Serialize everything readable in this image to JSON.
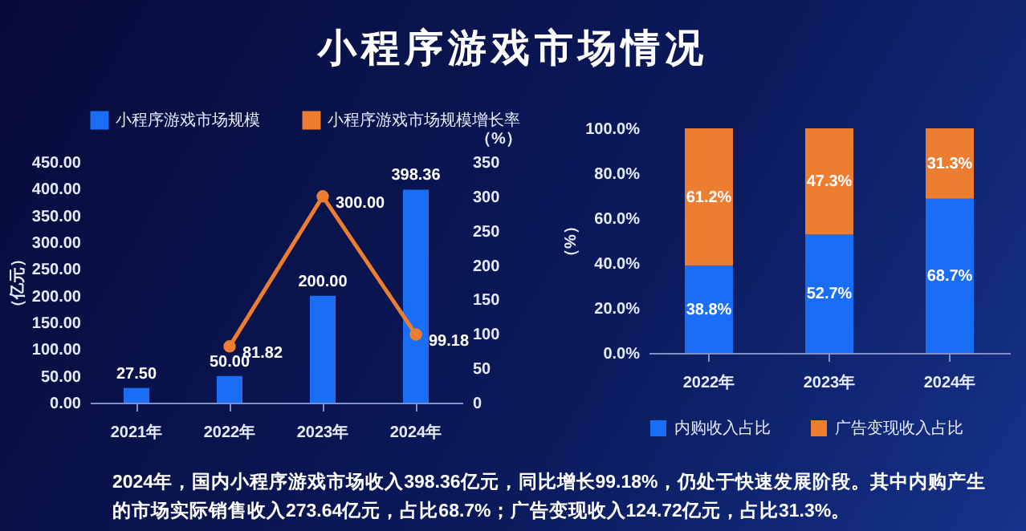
{
  "chart_data": [
    {
      "type": "bar",
      "title": "小程序游戏市场情况",
      "ylabel": "（亿元）",
      "y2label": "（%）",
      "categories": [
        "2021年",
        "2022年",
        "2023年",
        "2024年"
      ],
      "series": [
        {
          "name": "小程序游戏市场规模",
          "type": "bar",
          "color": "#1a6ef5",
          "values": [
            27.5,
            50,
            200,
            398.36
          ],
          "value_labels": [
            "27.50",
            "50.00",
            "200.00",
            "398.36"
          ]
        },
        {
          "name": "小程序游戏市场规模增长率",
          "type": "line",
          "axis": "y2",
          "color": "#ed7d31",
          "values": [
            null,
            81.82,
            300,
            99.18
          ],
          "value_labels": [
            null,
            "81.82",
            "300.00",
            "99.18"
          ]
        }
      ],
      "ylim": [
        0,
        450
      ],
      "yticks": [
        {
          "value": 0,
          "label": "0.00"
        },
        {
          "value": 50,
          "label": "50.00"
        },
        {
          "value": 100,
          "label": "100.00"
        },
        {
          "value": 150,
          "label": "150.00"
        },
        {
          "value": 200,
          "label": "200.00"
        },
        {
          "value": 250,
          "label": "250.00"
        },
        {
          "value": 300,
          "label": "300.00"
        },
        {
          "value": 350,
          "label": "350.00"
        },
        {
          "value": 400,
          "label": "400.00"
        },
        {
          "value": 450,
          "label": "450.00"
        }
      ],
      "y2lim": [
        0,
        350
      ],
      "y2ticks": [
        0,
        50,
        100,
        150,
        200,
        250,
        300,
        350
      ],
      "marker": "circle",
      "legend": "top",
      "annotations": [
        "2024年，国内小程序游戏市场收入398.36亿元，同比增长99.18%，仍处于快速发展阶段。其中内购产生的市场实际销售收入273.64亿元，占比68.7%；广告变现收入124.72亿元，占比31.3%。"
      ]
    },
    {
      "type": "bar",
      "stacked": true,
      "ylabel": "（%）",
      "categories": [
        "2022年",
        "2023年",
        "2024年"
      ],
      "series": [
        {
          "name": "内购收入占比",
          "color": "#1a6ef5",
          "values": [
            38.8,
            52.7,
            68.7
          ],
          "value_labels": [
            "38.8%",
            "52.7%",
            "68.7%"
          ]
        },
        {
          "name": "广告变现收入占比",
          "color": "#ed7d31",
          "values": [
            61.2,
            47.3,
            31.3
          ],
          "value_labels": [
            "61.2%",
            "47.3%",
            "31.3%"
          ]
        }
      ],
      "ylim": [
        0,
        100
      ],
      "yticks": [
        {
          "value": 0,
          "label": "0.0%"
        },
        {
          "value": 20,
          "label": "20.0%"
        },
        {
          "value": 40,
          "label": "40.0%"
        },
        {
          "value": 60,
          "label": "60.0%"
        },
        {
          "value": 80,
          "label": "80.0%"
        },
        {
          "value": 100,
          "label": "100.0%"
        }
      ],
      "legend": "bottom"
    }
  ]
}
